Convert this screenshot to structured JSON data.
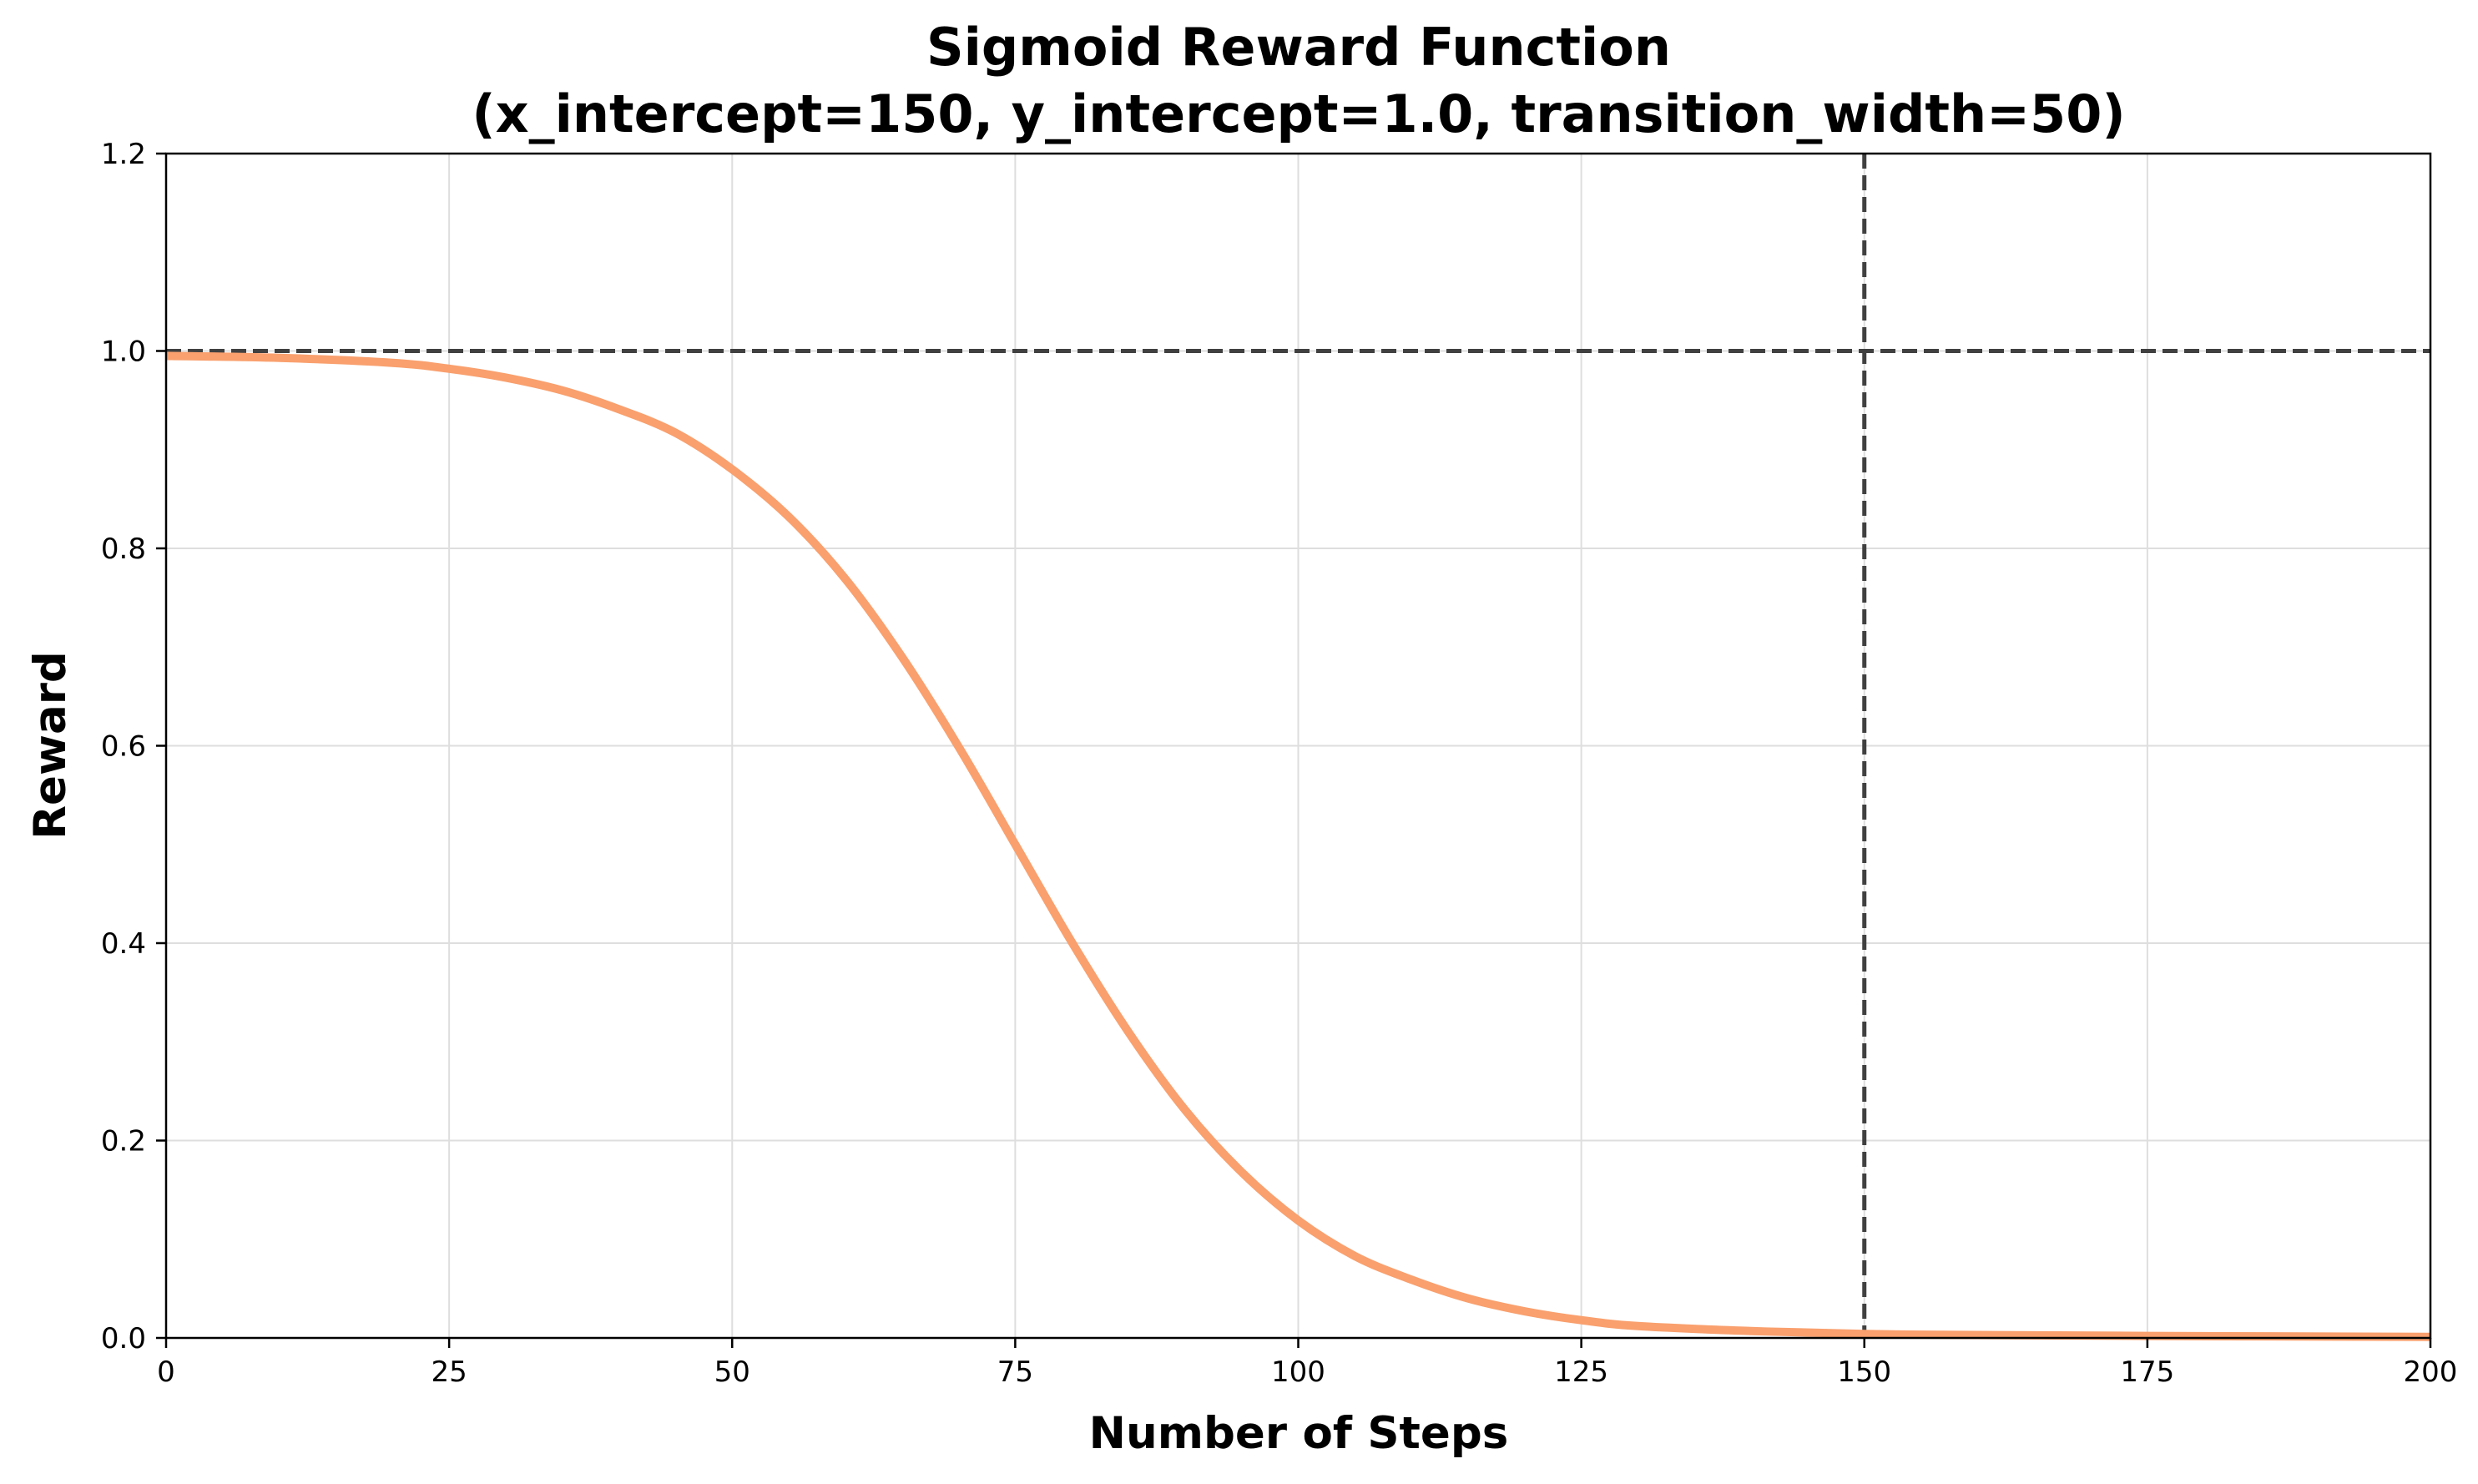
{
  "chart_data": {
    "type": "line",
    "title": "Sigmoid Reward Function",
    "subtitle": "(x_intercept=150, y_intercept=1.0, transition_width=50)",
    "xlabel": "Number of Steps",
    "ylabel": "Reward",
    "xlim": [
      0,
      200
    ],
    "ylim": [
      0,
      1.2
    ],
    "xticks": [
      0,
      25,
      50,
      75,
      100,
      125,
      150,
      175,
      200
    ],
    "xtick_labels": [
      "0",
      "25",
      "50",
      "75",
      "100",
      "125",
      "150",
      "175",
      "200"
    ],
    "yticks": [
      0,
      0.2,
      0.4,
      0.6,
      0.8,
      1.0,
      1.2
    ],
    "ytick_labels": [
      "0.0",
      "0.2",
      "0.4",
      "0.6",
      "0.8",
      "1.0",
      "1.2"
    ],
    "grid": true,
    "series": [
      {
        "color": "#f9a06e",
        "x": [
          0,
          10,
          20,
          25,
          30,
          35,
          40,
          45,
          50,
          55,
          60,
          65,
          70,
          75,
          80,
          85,
          90,
          95,
          100,
          105,
          110,
          115,
          120,
          125,
          130,
          140,
          150,
          160,
          175,
          200
        ],
        "y": [
          0.995,
          0.993,
          0.988,
          0.982,
          0.973,
          0.96,
          0.941,
          0.917,
          0.88,
          0.832,
          0.769,
          0.69,
          0.599,
          0.5,
          0.401,
          0.31,
          0.231,
          0.168,
          0.119,
          0.083,
          0.059,
          0.04,
          0.027,
          0.018,
          0.012,
          0.007,
          0.004,
          0.003,
          0.002,
          0.001
        ]
      }
    ],
    "reference_lines": [
      {
        "orientation": "horizontal",
        "value": 1.0,
        "style": "dashed",
        "color": "#404040"
      },
      {
        "orientation": "vertical",
        "value": 150,
        "style": "dashed",
        "color": "#404040"
      }
    ]
  }
}
